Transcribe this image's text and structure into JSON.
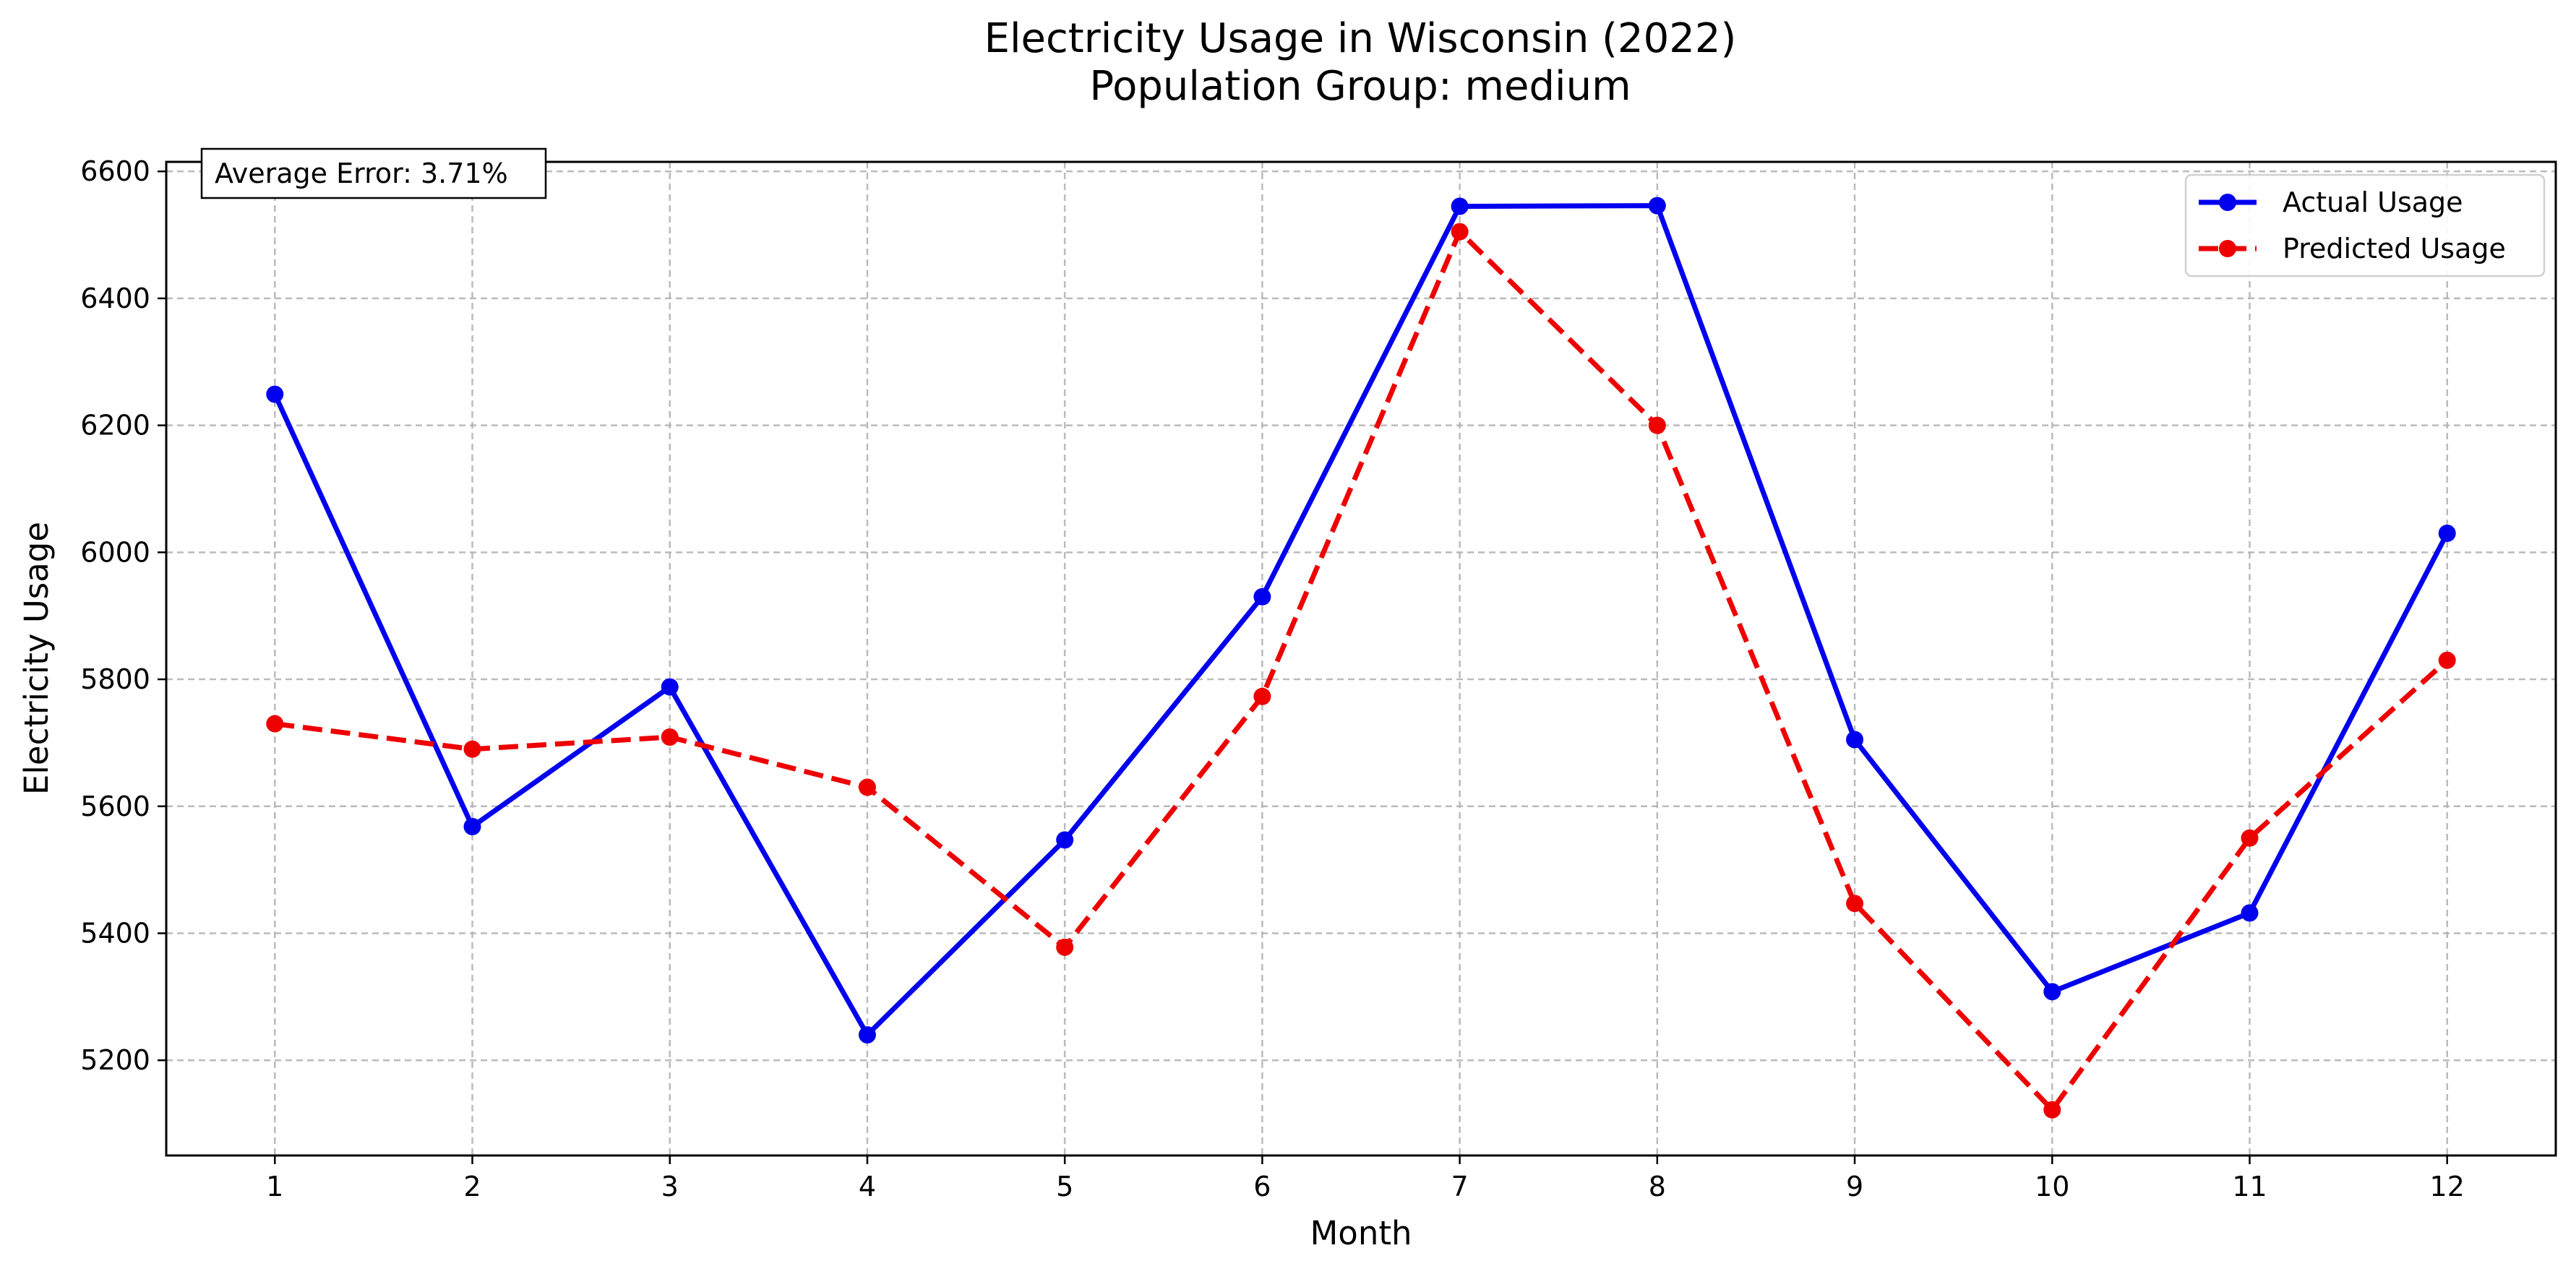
{
  "chart_data": {
    "type": "line",
    "title": "Electricity Usage in Wisconsin (2022)",
    "subtitle": "Population Group: medium",
    "xlabel": "Month",
    "ylabel": "Electricity Usage",
    "x": [
      1,
      2,
      3,
      4,
      5,
      6,
      7,
      8,
      9,
      10,
      11,
      12
    ],
    "xticks": [
      "1",
      "2",
      "3",
      "4",
      "5",
      "6",
      "7",
      "8",
      "9",
      "10",
      "11",
      "12"
    ],
    "yticks": [
      "5200",
      "5400",
      "5600",
      "5800",
      "6000",
      "6200",
      "6400",
      "6600"
    ],
    "ylim": [
      5050,
      6615
    ],
    "xlim": [
      0.45,
      12.55
    ],
    "grid": true,
    "legend_position": "top-right",
    "annotation": "Average Error: 3.71%",
    "series": [
      {
        "name": "Actual Usage",
        "color": "#0000ee",
        "linestyle": "solid",
        "marker": "circle",
        "values": [
          6249,
          5568,
          5788,
          5240,
          5547,
          5930,
          6545,
          6546,
          5705,
          5308,
          5432,
          6030
        ]
      },
      {
        "name": "Predicted Usage",
        "color": "#ee0000",
        "linestyle": "dashed",
        "marker": "circle",
        "values": [
          5730,
          5690,
          5709,
          5630,
          5378,
          5773,
          6505,
          6200,
          5447,
          5122,
          5550,
          5830
        ]
      }
    ]
  }
}
